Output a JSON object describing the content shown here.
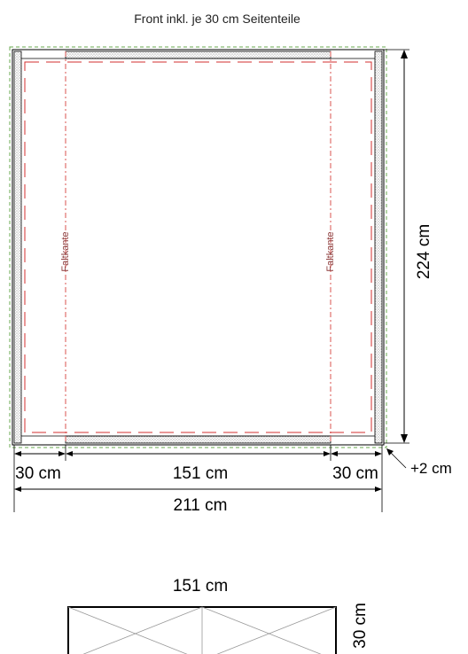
{
  "title": "Front inkl. je 30 cm Seitenteile",
  "fold_labels": [
    "Faltkante",
    "Faltkante"
  ],
  "dimensions": {
    "height": "224 cm",
    "left_panel": "30 cm",
    "center": "151 cm",
    "right_panel": "30 cm",
    "total_width": "211 cm",
    "allowance": "+2 cm"
  },
  "detail": {
    "width": "151 cm",
    "height": "30 cm"
  },
  "colors": {
    "outline": "#000000",
    "fold_line": "#d9534f",
    "cut_line": "#d32f2f",
    "allowance_line": "#6aa84f",
    "hatch": "#b0b0b0"
  }
}
